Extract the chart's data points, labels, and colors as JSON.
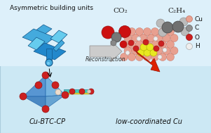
{
  "bg_color": "#cce8f4",
  "title_text": "Asymmetric building units",
  "label_left": "Cu-BTC-CP",
  "label_right": "low-coordinated Cu",
  "arrow_text": "Reconstruction",
  "co2_label": "CO₂",
  "c2h4_label": "C₂H₄",
  "legend_items": [
    {
      "label": "Cu",
      "color": "#e8a090",
      "ec": "#c07060"
    },
    {
      "label": "C",
      "color": "#909090",
      "ec": "#606060"
    },
    {
      "label": "O",
      "color": "#cc2020",
      "ec": "#991010"
    },
    {
      "label": "H",
      "color": "#eeeeee",
      "ec": "#aaaaaa"
    }
  ],
  "cu_color": "#e8a090",
  "cu_ec": "#c07060",
  "c_color": "#909090",
  "c_ec": "#606060",
  "o_color": "#cc2020",
  "o_ec": "#991010",
  "h_color": "#eeeeee",
  "h_ec": "#aaaaaa",
  "y_color": "#e8e820",
  "y_ec": "#b0b000",
  "blue1": "#2288cc",
  "blue2": "#44aadd",
  "blue3": "#66ccee",
  "blue_ec": "#115588",
  "arrow_fill": "#bbbbbb",
  "arrow_ec": "#888888",
  "red_arrow": "#dd2200"
}
